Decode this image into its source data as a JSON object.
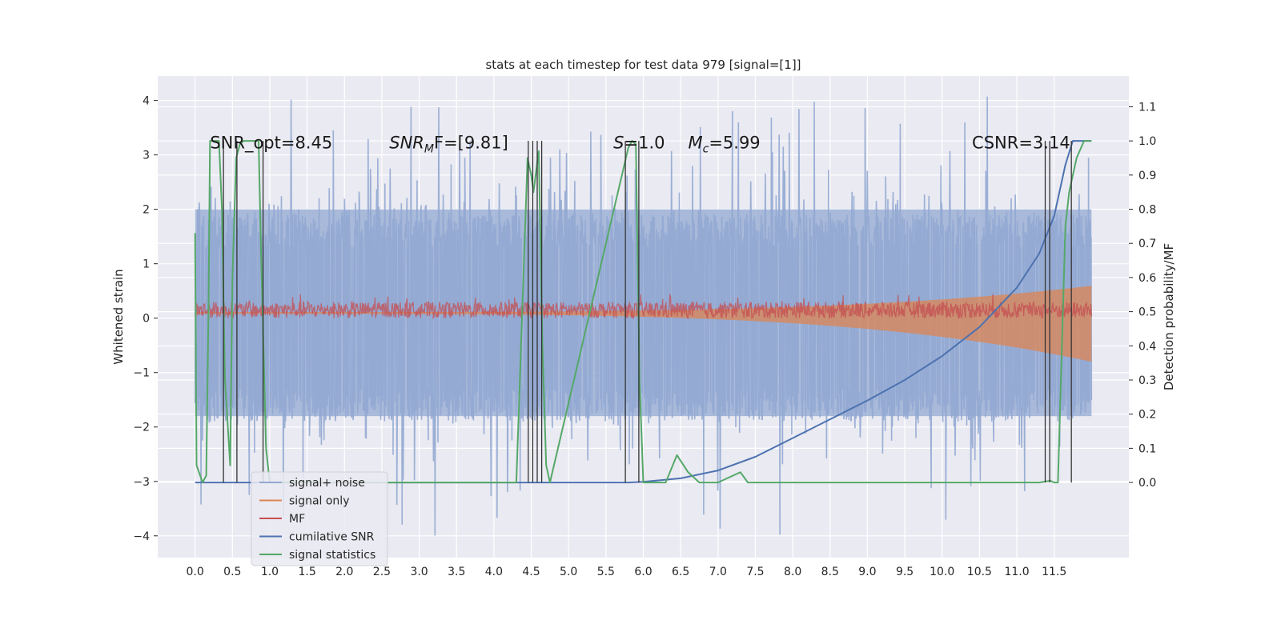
{
  "chart_data": {
    "type": "line",
    "title": "stats at each timestep for test data 979 [signal=[1]]",
    "xlabel": "",
    "ylabel": "Whitened strain",
    "y2label": "Detection probability/MF",
    "xlim": [
      -0.5,
      12.5
    ],
    "ylim": [
      -4.4,
      4.45
    ],
    "y2lim": [
      -0.22,
      1.19
    ],
    "x_ticks": [
      0.0,
      0.5,
      1.0,
      1.5,
      2.0,
      2.5,
      3.0,
      3.5,
      4.0,
      4.5,
      5.0,
      5.5,
      6.0,
      6.5,
      7.0,
      7.5,
      8.0,
      8.5,
      9.0,
      9.5,
      10.0,
      10.5,
      11.0,
      11.5
    ],
    "x_tick_labels": [
      "0.0",
      "0.5",
      "1.0",
      "1.5",
      "2.0",
      "2.5",
      "3.0",
      "3.5",
      "4.0",
      "4.5",
      "5.0",
      "5.5",
      "6.0",
      "6.5",
      "7.0",
      "7.5",
      "8.0",
      "8.5",
      "9.0",
      "9.5",
      "10.0",
      "10.5",
      "11.0",
      "11.5"
    ],
    "y_ticks": [
      -4,
      -3,
      -2,
      -1,
      0,
      1,
      2,
      3,
      4
    ],
    "y_tick_labels": [
      "−4",
      "−3",
      "−2",
      "−1",
      "0",
      "1",
      "2",
      "3",
      "4"
    ],
    "y2_ticks": [
      0.0,
      0.1,
      0.2,
      0.3,
      0.4,
      0.5,
      0.6,
      0.7,
      0.8,
      0.9,
      1.0,
      1.1
    ],
    "y2_tick_labels": [
      "0.0",
      "0.1",
      "0.2",
      "0.3",
      "0.4",
      "0.5",
      "0.6",
      "0.7",
      "0.8",
      "0.9",
      "1.0",
      "1.1"
    ],
    "grid": true,
    "legend": "lower-left",
    "annotations": [
      {
        "text": "SNR_opt=8.45",
        "x": 0.2,
        "y": 3.15
      },
      {
        "text": "SNR",
        "sub": "M",
        "suffix": "F=[9.81]",
        "x": 2.6,
        "y": 3.15
      },
      {
        "text": "S",
        "suffix": "=1.0",
        "x": 5.6,
        "y": 3.15
      },
      {
        "text": "M",
        "sub": "c",
        "suffix": "=5.99",
        "x": 6.6,
        "y": 3.15
      },
      {
        "text": "CSNR=3.14",
        "x": 10.4,
        "y": 3.15
      }
    ],
    "series": [
      {
        "name": "signal+ noise",
        "color": "#92a8d1",
        "axis": "left",
        "kind": "noise",
        "x_range": [
          0.0,
          12.0
        ],
        "typical_envelope": [
          -1.8,
          2.0
        ],
        "extremes": [
          -3.9,
          4.1
        ]
      },
      {
        "name": "signal only",
        "color": "#dd8452",
        "axis": "left",
        "kind": "chirp",
        "x_range": [
          0.0,
          12.0
        ],
        "amplitude_start": 0.02,
        "amplitude_end": 0.9
      },
      {
        "name": "MF",
        "color": "#c44e52",
        "axis": "left",
        "kind": "band",
        "x_range": [
          0.0,
          12.0
        ],
        "band": [
          0.0,
          0.3
        ]
      },
      {
        "name": "cumilative SNR",
        "color": "#4c72b0",
        "axis": "right",
        "x": [
          0.0,
          5.0,
          5.8,
          6.0,
          6.5,
          7.0,
          7.5,
          8.0,
          8.5,
          9.0,
          9.5,
          10.0,
          10.5,
          11.0,
          11.3,
          11.5,
          11.65,
          11.75,
          12.0
        ],
        "y": [
          0.0,
          0.0,
          0.0,
          0.002,
          0.012,
          0.035,
          0.075,
          0.13,
          0.185,
          0.24,
          0.3,
          0.37,
          0.455,
          0.57,
          0.67,
          0.78,
          0.93,
          1.0,
          1.0
        ]
      },
      {
        "name": "signal statistics",
        "color": "#55a868",
        "axis": "right",
        "x": [
          0.0,
          0.02,
          0.1,
          0.15,
          0.18,
          0.2,
          0.22,
          0.32,
          0.36,
          0.4,
          0.47,
          0.5,
          0.55,
          0.6,
          0.65,
          0.85,
          0.88,
          0.95,
          1.0,
          1.05,
          4.3,
          4.45,
          4.5,
          4.53,
          4.6,
          4.65,
          4.7,
          4.75,
          5.8,
          5.85,
          5.9,
          5.95,
          6.0,
          6.3,
          6.45,
          6.6,
          6.75,
          7.0,
          7.2,
          7.3,
          7.4,
          11.3,
          11.45,
          11.5,
          11.55,
          11.65,
          11.7,
          11.8,
          11.9,
          12.0
        ],
        "y": [
          0.73,
          0.05,
          0.0,
          0.02,
          0.5,
          1.0,
          1.0,
          1.0,
          0.8,
          0.3,
          0.05,
          0.6,
          0.95,
          0.99,
          1.0,
          1.0,
          0.7,
          0.1,
          0.0,
          0.0,
          0.0,
          0.95,
          0.9,
          0.85,
          0.97,
          0.4,
          0.05,
          0.0,
          0.98,
          1.0,
          0.99,
          0.3,
          0.0,
          0.0,
          0.08,
          0.03,
          0.0,
          0.0,
          0.02,
          0.03,
          0.0,
          0.0,
          0.005,
          0.0,
          0.0,
          0.75,
          0.85,
          0.95,
          1.0,
          1.0
        ]
      },
      {
        "name": "",
        "color": "#333333",
        "axis": "right",
        "kind": "vlines",
        "x": [
          0.38,
          0.56,
          0.91,
          4.46,
          4.52,
          4.58,
          4.64,
          5.76,
          5.94,
          11.38,
          11.44,
          11.73
        ],
        "y_range": [
          0.0,
          1.0
        ]
      }
    ]
  }
}
